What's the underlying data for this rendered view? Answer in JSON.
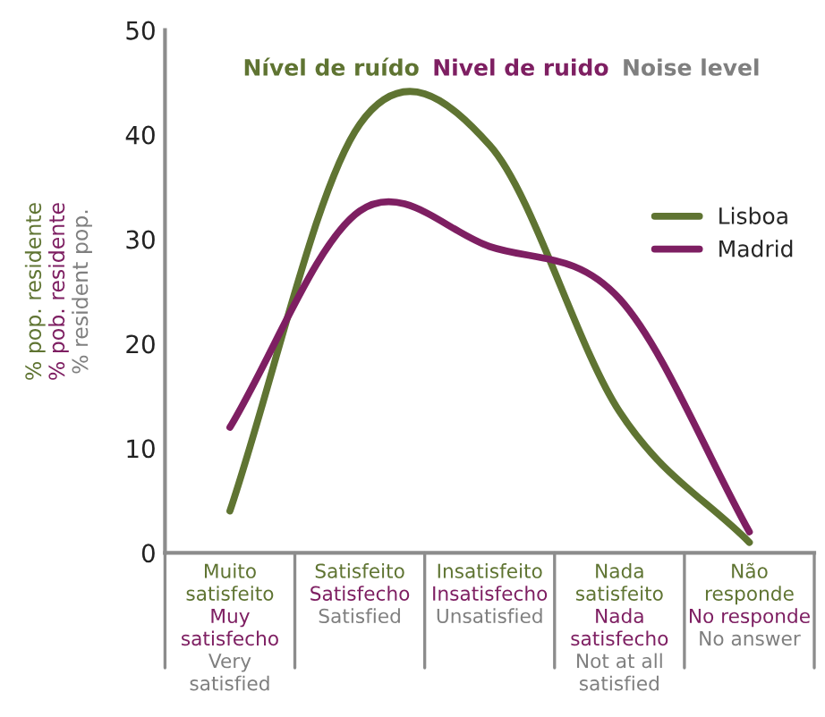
{
  "chart_data": {
    "type": "line",
    "annotations": [
      "Nível de ruído",
      "Nivel de ruido",
      "Noise level"
    ],
    "ylabel": "% pop. residente\n% pob. residente\n% resident pop.",
    "categories": [
      "Muito satisfeito\nMuy satisfecho\nVery satisfied",
      "Satisfeito\nSatisfecho\nSatisfied",
      "Insatisfeito\nInsatisfecho\nUnsatisfied",
      "Nada satisfeito\nNada satisfecho\nNot at all satisfied",
      "Não responde\nNo responde\nNo answer"
    ],
    "series": [
      {
        "name": "Lisboa",
        "color": "#5f7432",
        "values": [
          4,
          41,
          39,
          13.5,
          1
        ]
      },
      {
        "name": "Madrid",
        "color": "#7e1f62",
        "values": [
          12,
          32.7,
          29.3,
          24.3,
          2
        ]
      }
    ],
    "ylim": [
      0,
      50
    ],
    "yticks": [
      0,
      10,
      20,
      30,
      40,
      50
    ],
    "grid": false,
    "legend": "top right",
    "marker": "none",
    "line_style": "solid"
  }
}
